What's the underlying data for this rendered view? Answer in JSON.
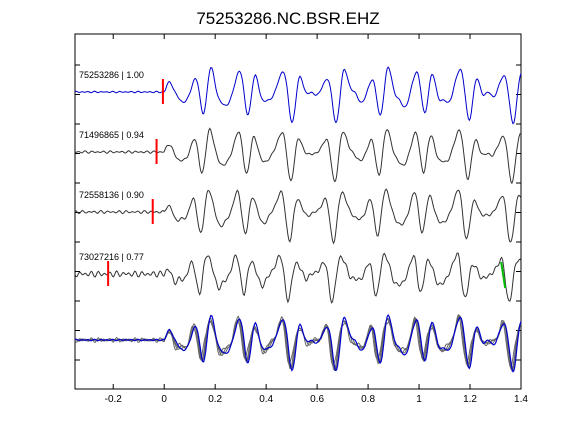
{
  "chart_data": {
    "type": "line",
    "title": "75253286.NC.BSR.EHZ",
    "xlim": [
      -0.35,
      1.4
    ],
    "x_ticks": [
      -0.2,
      0,
      0.2,
      0.4,
      0.6,
      0.8,
      1,
      1.2,
      1.4
    ],
    "x_tick_labels": [
      "-0.2",
      "0",
      "0.2",
      "0.4",
      "0.6",
      "0.8",
      "1",
      "1.2",
      "1.4"
    ],
    "grid": false,
    "colors": {
      "master": "#0000cc",
      "other": "#333333",
      "stack_other": "#666666",
      "pick": "#ff0000",
      "s_pick": "#00bb00"
    },
    "traces": [
      {
        "label": "75253286 | 1.00",
        "event_id": "75253286",
        "correlation": 1.0,
        "pick_time": -0.005,
        "color_key": "master",
        "amplitude": 1.0,
        "noise": 0.03,
        "phase": 0.0
      },
      {
        "label": "71496865 | 0.94",
        "event_id": "71496865",
        "correlation": 0.94,
        "pick_time": -0.03,
        "color_key": "other",
        "amplitude": 0.95,
        "noise": 0.05,
        "phase": 0.35
      },
      {
        "label": "72558136 | 0.90",
        "event_id": "72558136",
        "correlation": 0.9,
        "pick_time": -0.045,
        "color_key": "other",
        "amplitude": 0.95,
        "noise": 0.06,
        "phase": 0.7
      },
      {
        "label": "73027216 | 0.77",
        "event_id": "73027216",
        "correlation": 0.77,
        "pick_time": -0.22,
        "s_pick_time": 1.33,
        "color_key": "other",
        "amplitude": 0.85,
        "noise": 0.12,
        "phase": 1.1
      }
    ],
    "stack": {
      "count": 4
    }
  }
}
